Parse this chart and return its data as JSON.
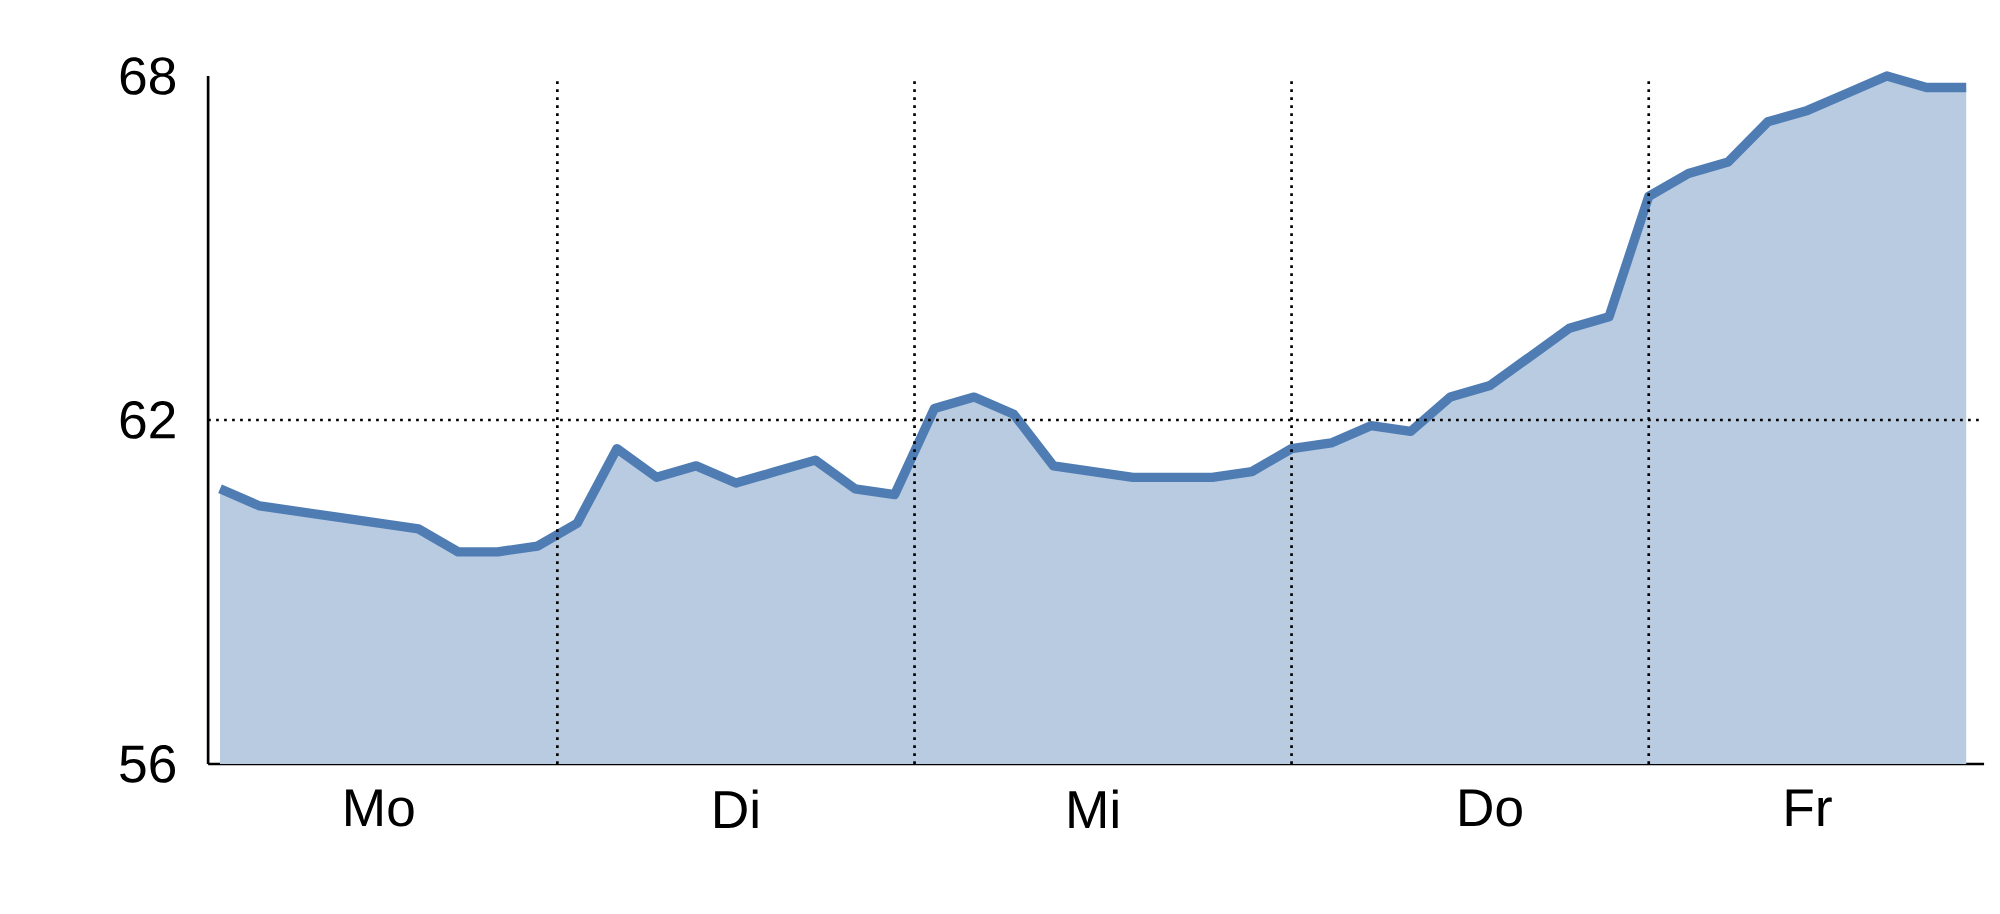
{
  "chart_data": {
    "type": "area",
    "color": "#4f7db3",
    "categories": [
      null,
      null,
      null,
      null,
      "Mo",
      null,
      null,
      null,
      null,
      null,
      null,
      null,
      null,
      "Di",
      null,
      null,
      null,
      null,
      null,
      null,
      null,
      null,
      "Mi",
      null,
      null,
      null,
      null,
      null,
      null,
      null,
      null,
      null,
      "Do",
      null,
      null,
      null,
      null,
      null,
      null,
      null,
      "Fr",
      null,
      null,
      null,
      null
    ],
    "values": [
      60.8,
      60.5,
      60.4,
      60.3,
      60.2,
      60.1,
      59.7,
      59.7,
      59.8,
      60.2,
      61.5,
      61.0,
      61.2,
      60.9,
      61.1,
      61.3,
      60.8,
      60.7,
      62.2,
      62.4,
      62.1,
      61.2,
      61.1,
      61.0,
      61.0,
      61.0,
      61.1,
      61.5,
      61.6,
      61.9,
      61.8,
      62.4,
      62.6,
      63.1,
      63.6,
      63.8,
      65.9,
      66.3,
      66.5,
      67.2,
      67.4,
      67.7,
      68.0,
      67.8,
      67.8
    ],
    "ylim": [
      56,
      68
    ],
    "yticks": [
      56,
      62,
      68
    ],
    "ref_lines": [
      {
        "axis": "y",
        "value": 62,
        "line_style": "dotted",
        "color": "#000000"
      }
    ]
  }
}
